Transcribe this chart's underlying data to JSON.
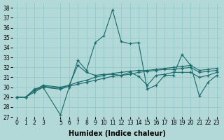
{
  "xlabel": "Humidex (Indice chaleur)",
  "background_color": "#b2d8d8",
  "grid_color": "#8ec8c8",
  "line_color": "#1a6b6b",
  "ylim": [
    27,
    38.5
  ],
  "xlim": [
    -0.5,
    23.5
  ],
  "yticks": [
    27,
    28,
    29,
    30,
    31,
    32,
    33,
    34,
    35,
    36,
    37,
    38
  ],
  "xticks": [
    0,
    1,
    2,
    3,
    5,
    6,
    7,
    8,
    9,
    10,
    11,
    12,
    13,
    14,
    15,
    16,
    17,
    18,
    19,
    20,
    21,
    22,
    23
  ],
  "series": [
    {
      "x": [
        0,
        1,
        2,
        3,
        5,
        6,
        7,
        8,
        9,
        10,
        11,
        12,
        13,
        14,
        15,
        16,
        17,
        18,
        19,
        20,
        21,
        22,
        23
      ],
      "y": [
        29,
        29,
        29.5,
        30,
        27.2,
        30,
        32.7,
        31.7,
        34.5,
        35.2,
        37.8,
        34.6,
        34.4,
        34.5,
        29.8,
        30.2,
        31.2,
        31.2,
        33.3,
        32.2,
        29.1,
        30.5,
        31.2
      ]
    },
    {
      "x": [
        0,
        1,
        2,
        3,
        5,
        6,
        7,
        8,
        9,
        10,
        11,
        12,
        13,
        14,
        15,
        16,
        17,
        18,
        19,
        20,
        21,
        22,
        23
      ],
      "y": [
        29,
        29,
        29.7,
        30.2,
        30.0,
        30.2,
        32.2,
        31.5,
        31.2,
        31.3,
        31.3,
        31.2,
        31.5,
        31.1,
        30.2,
        31.2,
        31.3,
        31.5,
        31.5,
        31.5,
        31.0,
        31.2,
        31.5
      ]
    },
    {
      "x": [
        0,
        1,
        2,
        3,
        5,
        6,
        7,
        8,
        9,
        10,
        11,
        12,
        13,
        14,
        15,
        16,
        17,
        18,
        19,
        20,
        21,
        22,
        23
      ],
      "y": [
        29,
        29,
        29.7,
        30.0,
        29.8,
        30.1,
        30.3,
        30.5,
        30.7,
        30.9,
        31.1,
        31.2,
        31.3,
        31.5,
        31.6,
        31.7,
        31.8,
        31.8,
        31.9,
        32.0,
        31.5,
        31.6,
        31.7
      ]
    },
    {
      "x": [
        0,
        1,
        2,
        3,
        5,
        6,
        7,
        8,
        9,
        10,
        11,
        12,
        13,
        14,
        15,
        16,
        17,
        18,
        19,
        20,
        21,
        22,
        23
      ],
      "y": [
        29,
        29,
        29.8,
        30.1,
        29.9,
        30.2,
        30.5,
        30.7,
        31.0,
        31.2,
        31.4,
        31.5,
        31.6,
        31.7,
        31.7,
        31.8,
        31.9,
        32.0,
        32.1,
        32.2,
        31.7,
        31.8,
        31.9
      ]
    }
  ],
  "tick_fontsize": 5.5,
  "xlabel_fontsize": 7
}
